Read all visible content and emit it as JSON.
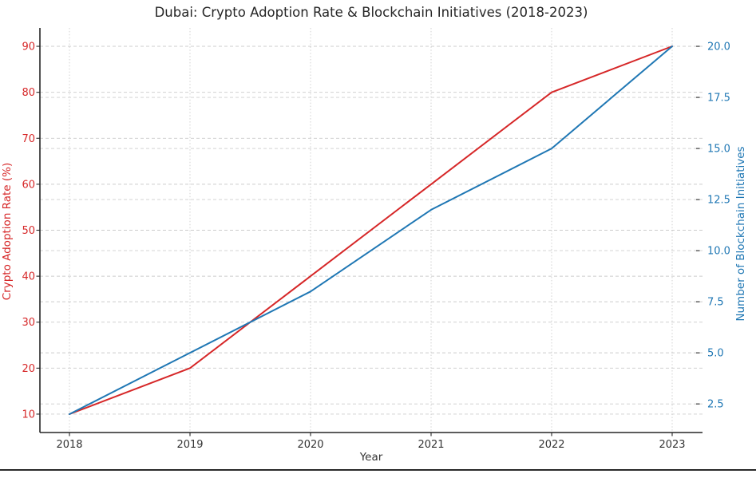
{
  "chart_data": {
    "type": "line",
    "title": "Dubai: Crypto Adoption Rate & Blockchain Initiatives (2018-2023)",
    "xlabel": "Year",
    "categories": [
      "2018",
      "2019",
      "2020",
      "2021",
      "2022",
      "2023"
    ],
    "series": [
      {
        "name": "Crypto Adoption Rate (%)",
        "axis": "left",
        "color": "#d62728",
        "values": [
          10,
          20,
          40,
          60,
          80,
          90
        ]
      },
      {
        "name": "Number of Blockchain Initiatives",
        "axis": "right",
        "color": "#1f77b4",
        "values": [
          2,
          5,
          8,
          12,
          15,
          20
        ]
      }
    ],
    "left_axis": {
      "label": "Crypto Adoption Rate (%)",
      "color": "#d62728",
      "tick_labels": [
        "10",
        "20",
        "30",
        "40",
        "50",
        "60",
        "70",
        "80",
        "90"
      ],
      "tick_values": [
        10,
        20,
        30,
        40,
        50,
        60,
        70,
        80,
        90
      ],
      "range": [
        6,
        94
      ]
    },
    "right_axis": {
      "label": "Number of Blockchain Initiatives",
      "color": "#1f77b4",
      "tick_labels": [
        "2.5",
        "5.0",
        "7.5",
        "10.0",
        "12.5",
        "15.0",
        "17.5",
        "20.0"
      ],
      "tick_values": [
        2.5,
        5,
        7.5,
        10,
        12.5,
        15,
        17.5,
        20
      ],
      "range": [
        1.1,
        20.9
      ]
    },
    "grid": true,
    "legend_position": "none",
    "axis_color": "#262626",
    "x_tick_color": "#333333",
    "grid_color": "#cccccc"
  }
}
